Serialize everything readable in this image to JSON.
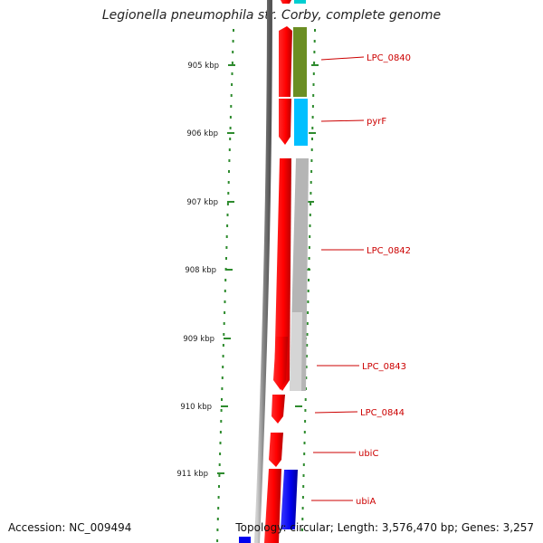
{
  "title": "Legionella pneumophila str. Corby, complete genome",
  "accession": "Accession: NC_009494",
  "topology": "Topology: circular; Length: 3,576,470 bp; Genes: 3,257",
  "ruler": {
    "unit_label": "kbp",
    "ticks": [
      "905 kbp",
      "906 kbp",
      "907 kbp",
      "908 kbp",
      "909 kbp",
      "910 kbp",
      "911 kbp"
    ]
  },
  "genes": [
    {
      "label": "LPC_0840",
      "strand": "forward",
      "color": "#6b8e23"
    },
    {
      "label": "pyrF",
      "strand": "forward",
      "color": "#00bfff"
    },
    {
      "label": "LPC_0842",
      "strand": "forward",
      "color": "#b0b0b0"
    },
    {
      "label": "LPC_0843",
      "strand": "forward",
      "color": "#d3d3d3"
    },
    {
      "label": "LPC_0844",
      "strand": "forward",
      "color": "#ff0000"
    },
    {
      "label": "ubiC",
      "strand": "forward",
      "color": "#ff0000"
    },
    {
      "label": "ubiA",
      "strand": "forward",
      "color": "#0000ff"
    }
  ],
  "colors": {
    "cds": "#ff0000",
    "rna_blue": "#0000ff",
    "ruler_ticks": "#2e8b2e",
    "label": "#cc0000",
    "backbone": "#808080"
  }
}
